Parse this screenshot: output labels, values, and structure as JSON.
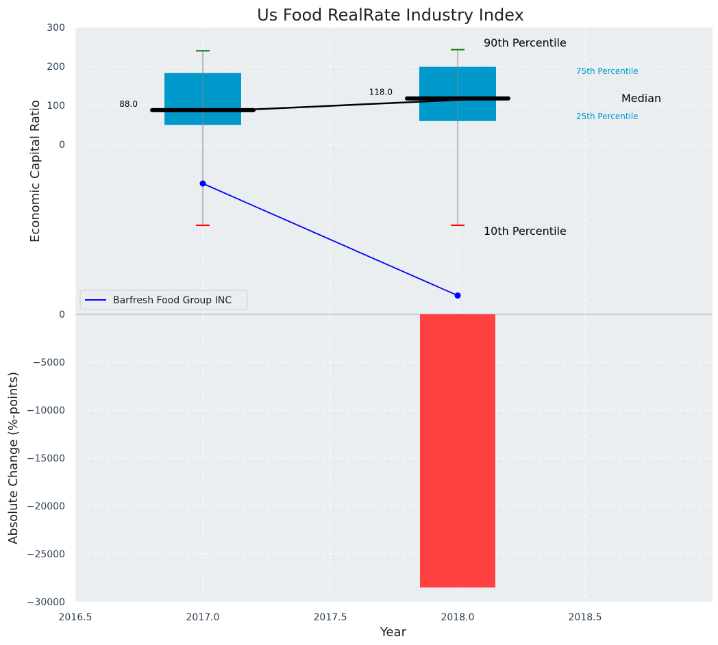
{
  "chart_data": [
    {
      "type": "box",
      "title": "Us Food RealRate Industry Index",
      "xlabel": "",
      "ylabel": "Economic Capital Ratio",
      "ytick_labels": [
        "0",
        "100",
        "200",
        "300"
      ],
      "boxes": [
        {
          "x": 2017.0,
          "p10": -207,
          "p25": 50,
          "median": 88,
          "p75": 183,
          "p90": 240,
          "median_label": "88.0"
        },
        {
          "x": 2018.0,
          "p10": -207,
          "p25": 60,
          "median": 118,
          "p75": 199,
          "p90": 243,
          "median_label": "118.0"
        }
      ],
      "median_line": {
        "x": [
          2017.0,
          2018.0
        ],
        "y": [
          88,
          118
        ]
      },
      "series": [
        {
          "name": "Barfresh Food Group INC",
          "x": [
            2017.0,
            2018.0
          ],
          "y": [
            -100,
            -387
          ]
        }
      ],
      "annotations": [
        "90th Percentile",
        "75th Percentile",
        "Median",
        "25th Percentile",
        "10th Percentile"
      ],
      "legend": "lower-left",
      "grid": true,
      "colors": {
        "box": "#0099cc",
        "median": "#000000",
        "p90_cap": "#008000",
        "p10_cap": "#ff0000",
        "series": "#0000ff",
        "pct_text": "#0099cc"
      }
    },
    {
      "type": "bar",
      "categories": [
        2017.0,
        2018.0
      ],
      "values": [
        0,
        -28500
      ],
      "xlabel": "Year",
      "ylabel": "Absolute Change (%-points)",
      "xlim": [
        2016.5,
        2019.0
      ],
      "ylim": [
        -30000,
        0
      ],
      "xtick_labels": [
        "2016.5",
        "2017.0",
        "2017.5",
        "2018.0",
        "2018.5"
      ],
      "ytick_labels": [
        "0",
        "−5000",
        "−10000",
        "−15000",
        "−20000",
        "−25000",
        "−30000"
      ],
      "grid": true,
      "colors": {
        "bar": "#ff3b3b"
      }
    }
  ]
}
